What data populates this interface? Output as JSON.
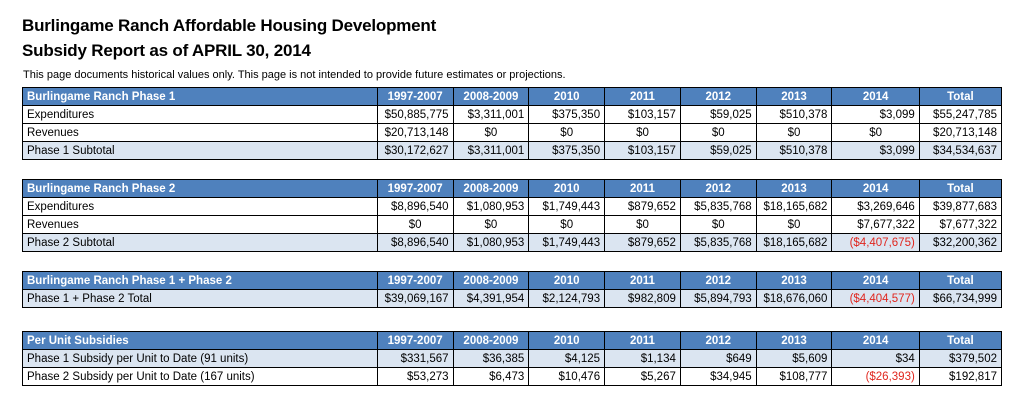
{
  "title_line1": "Burlingame Ranch Affordable Housing Development",
  "title_line2": "Subsidy Report as of APRIL 30, 2014",
  "note": "This page documents historical values only.  This page is not intended to provide future estimates or projections.",
  "columns": [
    "1997-2007",
    "2008-2009",
    "2010",
    "2011",
    "2012",
    "2013",
    "2014",
    "Total"
  ],
  "tables": [
    {
      "heading": "Burlingame Ranch Phase 1",
      "rows": [
        {
          "label": "Expenditures",
          "style": "plain",
          "values": [
            "$50,885,775",
            "$3,311,001",
            "$375,350",
            "$103,157",
            "$59,025",
            "$510,378",
            "$3,099",
            "$55,247,785"
          ]
        },
        {
          "label": "Revenues",
          "style": "plain",
          "values": [
            "$20,713,148",
            "$0",
            "$0",
            "$0",
            "$0",
            "$0",
            "$0",
            "$20,713,148"
          ]
        },
        {
          "label": "Phase 1 Subtotal",
          "style": "sub",
          "values": [
            "$30,172,627",
            "$3,311,001",
            "$375,350",
            "$103,157",
            "$59,025",
            "$510,378",
            "$3,099",
            "$34,534,637"
          ]
        }
      ]
    },
    {
      "heading": "Burlingame Ranch Phase 2",
      "rows": [
        {
          "label": "Expenditures",
          "style": "plain",
          "values": [
            "$8,896,540",
            "$1,080,953",
            "$1,749,443",
            "$879,652",
            "$5,835,768",
            "$18,165,682",
            "$3,269,646",
            "$39,877,683"
          ]
        },
        {
          "label": "Revenues",
          "style": "plain",
          "values": [
            "$0",
            "$0",
            "$0",
            "$0",
            "$0",
            "$0",
            "$7,677,322",
            "$7,677,322"
          ]
        },
        {
          "label": "Phase 2 Subtotal",
          "style": "sub",
          "values": [
            "$8,896,540",
            "$1,080,953",
            "$1,749,443",
            "$879,652",
            "$5,835,768",
            "$18,165,682",
            "($4,407,675)",
            "$32,200,362"
          ]
        }
      ]
    },
    {
      "heading": "Burlingame Ranch Phase 1 + Phase 2",
      "rows": [
        {
          "label": "Phase 1 + Phase 2 Total",
          "style": "sub",
          "values": [
            "$39,069,167",
            "$4,391,954",
            "$2,124,793",
            "$982,809",
            "$5,894,793",
            "$18,676,060",
            "($4,404,577)",
            "$66,734,999"
          ]
        }
      ]
    },
    {
      "heading": "Per Unit Subsidies",
      "rows": [
        {
          "label": "Phase 1 Subsidy per Unit to Date (91 units)",
          "style": "sub",
          "values": [
            "$331,567",
            "$36,385",
            "$4,125",
            "$1,134",
            "$649",
            "$5,609",
            "$34",
            "$379,502"
          ]
        },
        {
          "label": "Phase 2 Subsidy per Unit to Date (167 units)",
          "style": "plain",
          "values": [
            "$53,273",
            "$6,473",
            "$10,476",
            "$5,267",
            "$34,945",
            "$108,777",
            "($26,393)",
            "$192,817"
          ]
        }
      ]
    }
  ],
  "negative_color": "#e0261e",
  "header_color": "#4f81bd",
  "subtotal_color": "#dbe5f1"
}
